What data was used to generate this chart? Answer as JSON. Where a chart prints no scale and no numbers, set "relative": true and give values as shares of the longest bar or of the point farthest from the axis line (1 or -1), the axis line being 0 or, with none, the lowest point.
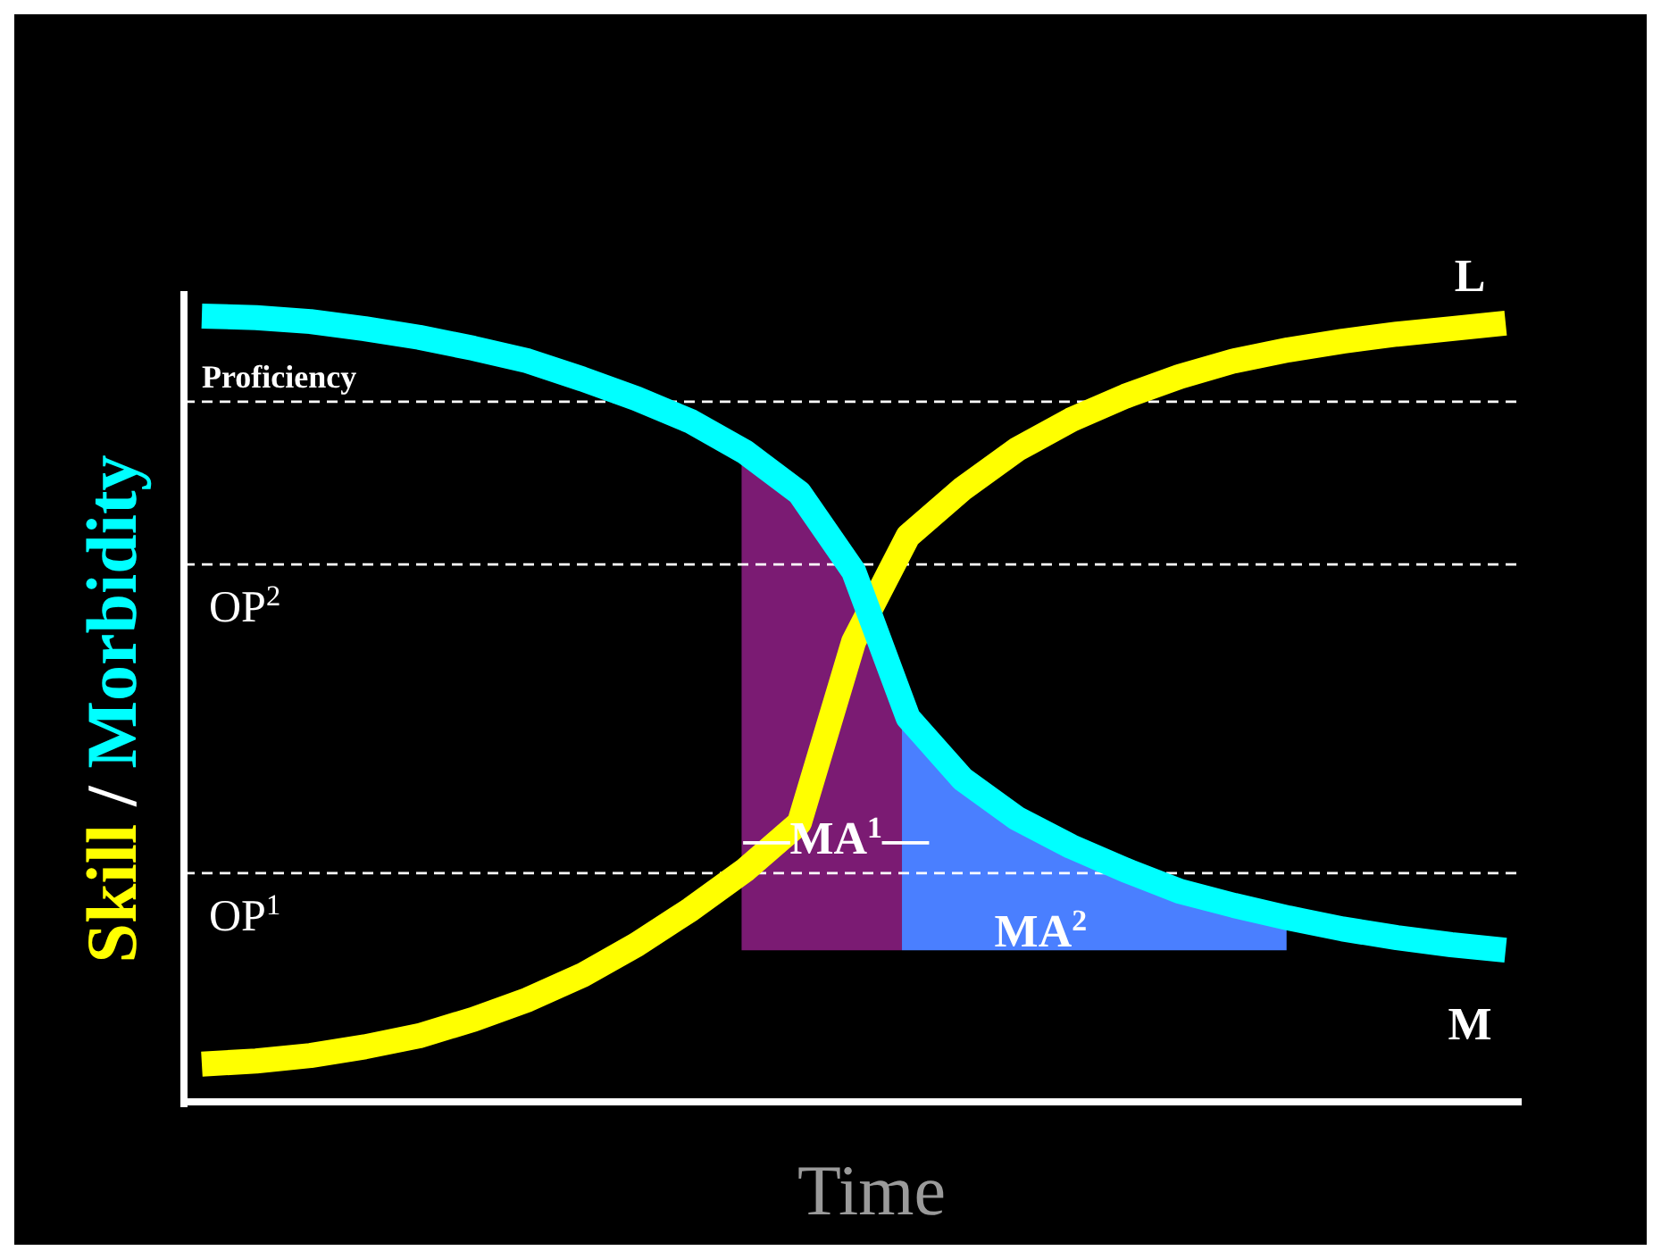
{
  "chart_data": {
    "type": "line",
    "relative": true,
    "xlabel": "Time",
    "ylabel": "Skill / Morbidity",
    "legend": false,
    "line_style": "solid",
    "marker": "none",
    "categories": [
      null,
      null,
      null,
      null,
      null,
      null,
      null,
      null,
      null,
      null,
      null,
      null,
      null,
      null,
      null,
      null,
      null,
      null,
      null,
      null,
      null,
      null,
      null,
      null,
      null
    ],
    "series": [
      {
        "name": "L",
        "color": "#ffff00",
        "values": [
          0.048,
          0.052,
          0.059,
          0.07,
          0.084,
          0.105,
          0.13,
          0.161,
          0.2,
          0.245,
          0.295,
          0.355,
          0.586,
          0.72,
          0.78,
          0.83,
          0.868,
          0.898,
          0.923,
          0.943,
          0.957,
          0.968,
          0.977,
          0.984,
          0.991
        ]
      },
      {
        "name": "M",
        "color": "#00ffff",
        "values": [
          1.0,
          0.998,
          0.993,
          0.984,
          0.973,
          0.959,
          0.943,
          0.92,
          0.895,
          0.866,
          0.827,
          0.775,
          0.675,
          0.489,
          0.411,
          0.361,
          0.325,
          0.295,
          0.268,
          0.25,
          0.234,
          0.22,
          0.209,
          0.2,
          0.193
        ]
      }
    ],
    "ref_lines": [
      {
        "axis": "y",
        "value": 0.891,
        "label": "Proficiency",
        "color": "#ffffff",
        "line_style": "dashed"
      },
      {
        "axis": "y",
        "value": 0.684,
        "label": "OP$^{2}$",
        "color": "#ffffff",
        "line_style": "dashed"
      },
      {
        "axis": "y",
        "value": 0.291,
        "label": "OP$^{1}$",
        "color": "#ffffff",
        "line_style": "dashed"
      }
    ],
    "annotations": [
      "—MA$^{1}$—",
      "MA$^{2}$"
    ]
  }
}
